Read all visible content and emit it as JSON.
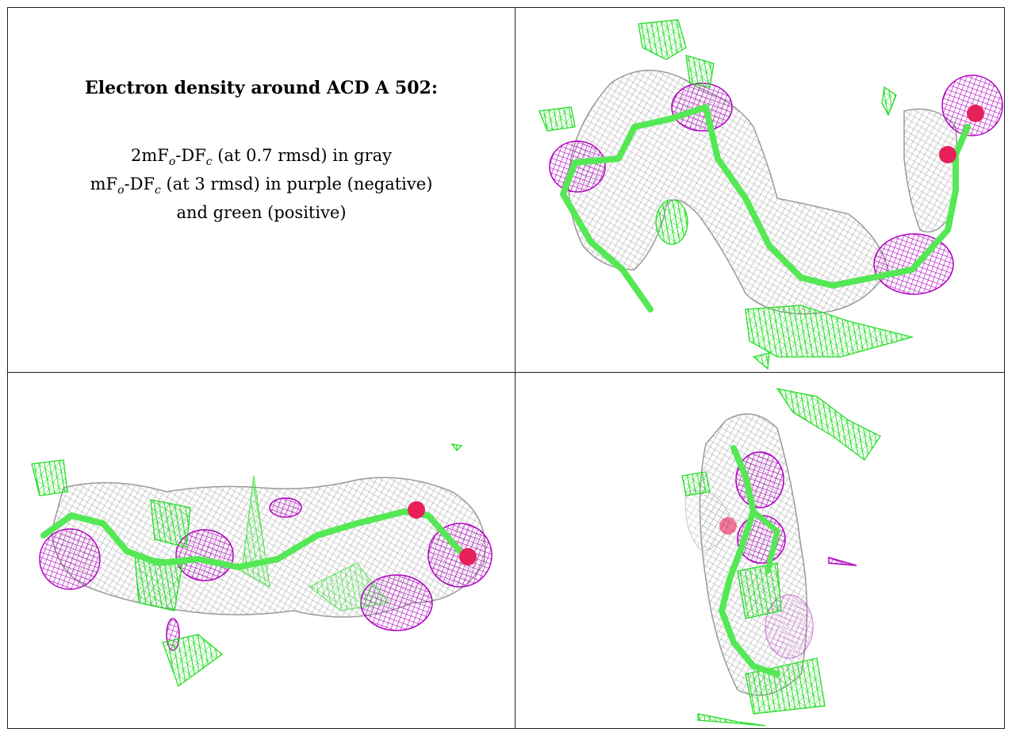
{
  "caption": {
    "title": "Electron density around ACD A 502:",
    "line1": {
      "prefix": "2mF",
      "sub1": "o",
      "mid": "-DF",
      "sub2": "c",
      "suffix": " (at 0.7 rmsd) in gray"
    },
    "line2": {
      "prefix": "mF",
      "sub1": "o",
      "mid": "-DF",
      "sub2": "c",
      "suffix": " (at 3 rmsd) in purple (negative)"
    },
    "line3": "and green (positive)"
  },
  "colors": {
    "density_2fofc": "#a6a6a6",
    "difference_negative": "#b000c0",
    "difference_positive": "#22dd22",
    "ligand_stick": "#55e855",
    "oxygen_atom": "#e8205a"
  },
  "panels": [
    {
      "view": "top-right"
    },
    {
      "view": "bottom-left"
    },
    {
      "view": "bottom-right"
    }
  ]
}
